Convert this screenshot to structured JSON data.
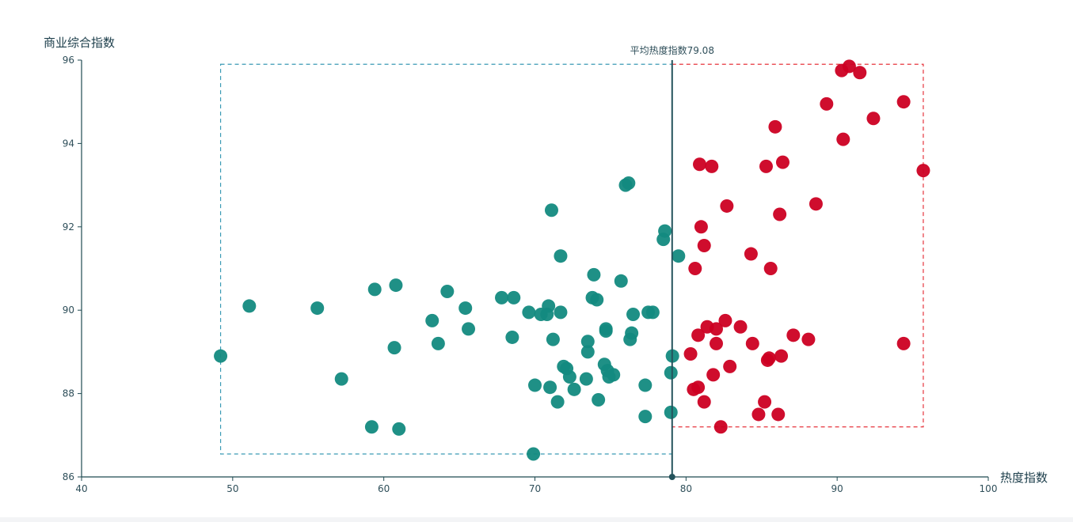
{
  "chart_data": {
    "type": "scatter",
    "xlabel": "热度指数",
    "ylabel": "商业综合指数",
    "xlim": [
      40,
      100
    ],
    "ylim": [
      86,
      96
    ],
    "x_ticks": [
      "40",
      "50",
      "60",
      "70",
      "80",
      "90",
      "100"
    ],
    "y_ticks": [
      "86",
      "88",
      "90",
      "92",
      "94",
      "96"
    ],
    "grid": false,
    "average_line": {
      "label": "平均热度指数79.08",
      "x": 79.08,
      "color": "#24535c"
    },
    "regions": [
      {
        "name": "low",
        "x_range": [
          49.2,
          79.08
        ],
        "y_range": [
          86.55,
          95.9
        ],
        "color": "#3a9ab5"
      },
      {
        "name": "high",
        "x_range": [
          79.08,
          95.7
        ],
        "y_range": [
          87.2,
          95.9
        ],
        "color": "#e6343c"
      }
    ],
    "series": [
      {
        "color": "#138a80",
        "points": [
          [
            49.2,
            88.9
          ],
          [
            51.1,
            90.1
          ],
          [
            55.6,
            90.05
          ],
          [
            57.2,
            88.35
          ],
          [
            59.2,
            87.2
          ],
          [
            59.4,
            90.5
          ],
          [
            60.7,
            89.1
          ],
          [
            60.8,
            90.6
          ],
          [
            61.0,
            87.15
          ],
          [
            63.2,
            89.75
          ],
          [
            63.6,
            89.2
          ],
          [
            64.2,
            90.45
          ],
          [
            65.4,
            90.05
          ],
          [
            65.6,
            89.55
          ],
          [
            67.8,
            90.3
          ],
          [
            68.5,
            89.35
          ],
          [
            68.6,
            90.3
          ],
          [
            69.6,
            89.95
          ],
          [
            69.9,
            86.55
          ],
          [
            70.0,
            88.2
          ],
          [
            70.4,
            89.9
          ],
          [
            70.8,
            89.9
          ],
          [
            70.9,
            90.1
          ],
          [
            71.0,
            88.15
          ],
          [
            71.1,
            92.4
          ],
          [
            71.2,
            89.3
          ],
          [
            71.5,
            87.8
          ],
          [
            71.7,
            91.3
          ],
          [
            71.7,
            89.95
          ],
          [
            71.9,
            88.65
          ],
          [
            72.1,
            88.6
          ],
          [
            72.3,
            88.4
          ],
          [
            72.6,
            88.1
          ],
          [
            73.4,
            88.35
          ],
          [
            73.5,
            89.0
          ],
          [
            73.5,
            89.25
          ],
          [
            73.8,
            90.3
          ],
          [
            73.9,
            90.85
          ],
          [
            74.1,
            90.25
          ],
          [
            74.2,
            87.85
          ],
          [
            74.6,
            88.7
          ],
          [
            74.7,
            89.55
          ],
          [
            74.7,
            89.5
          ],
          [
            74.8,
            88.55
          ],
          [
            74.9,
            88.4
          ],
          [
            75.2,
            88.45
          ],
          [
            75.7,
            90.7
          ],
          [
            76.0,
            93.0
          ],
          [
            76.2,
            93.05
          ],
          [
            76.3,
            89.3
          ],
          [
            76.4,
            89.45
          ],
          [
            76.5,
            89.9
          ],
          [
            77.3,
            88.2
          ],
          [
            77.3,
            87.45
          ],
          [
            77.5,
            89.95
          ],
          [
            77.8,
            89.95
          ],
          [
            78.5,
            91.7
          ],
          [
            78.6,
            91.9
          ],
          [
            79.0,
            88.5
          ],
          [
            79.1,
            88.9
          ],
          [
            79.0,
            87.55
          ],
          [
            79.5,
            91.3
          ]
        ]
      },
      {
        "color": "#cc0022",
        "points": [
          [
            80.3,
            88.95
          ],
          [
            80.5,
            88.1
          ],
          [
            80.6,
            91.0
          ],
          [
            80.8,
            88.15
          ],
          [
            80.8,
            89.4
          ],
          [
            80.9,
            93.5
          ],
          [
            81.0,
            92.0
          ],
          [
            81.2,
            87.8
          ],
          [
            81.2,
            91.55
          ],
          [
            81.4,
            89.6
          ],
          [
            81.7,
            93.45
          ],
          [
            81.8,
            88.45
          ],
          [
            82.0,
            89.55
          ],
          [
            82.0,
            89.2
          ],
          [
            82.3,
            87.2
          ],
          [
            82.6,
            89.75
          ],
          [
            82.7,
            92.5
          ],
          [
            82.9,
            88.65
          ],
          [
            83.6,
            89.6
          ],
          [
            84.3,
            91.35
          ],
          [
            84.4,
            89.2
          ],
          [
            84.8,
            87.5
          ],
          [
            85.2,
            87.8
          ],
          [
            85.3,
            93.45
          ],
          [
            85.4,
            88.8
          ],
          [
            85.5,
            88.85
          ],
          [
            85.6,
            91.0
          ],
          [
            85.9,
            94.4
          ],
          [
            86.1,
            87.5
          ],
          [
            86.2,
            92.3
          ],
          [
            86.3,
            88.9
          ],
          [
            86.4,
            93.55
          ],
          [
            87.1,
            89.4
          ],
          [
            88.1,
            89.3
          ],
          [
            88.6,
            92.55
          ],
          [
            89.3,
            94.95
          ],
          [
            90.3,
            95.75
          ],
          [
            90.4,
            94.1
          ],
          [
            90.8,
            95.85
          ],
          [
            91.5,
            95.7
          ],
          [
            92.4,
            94.6
          ],
          [
            94.4,
            95.0
          ],
          [
            94.4,
            89.2
          ],
          [
            95.7,
            93.35
          ]
        ]
      }
    ]
  }
}
